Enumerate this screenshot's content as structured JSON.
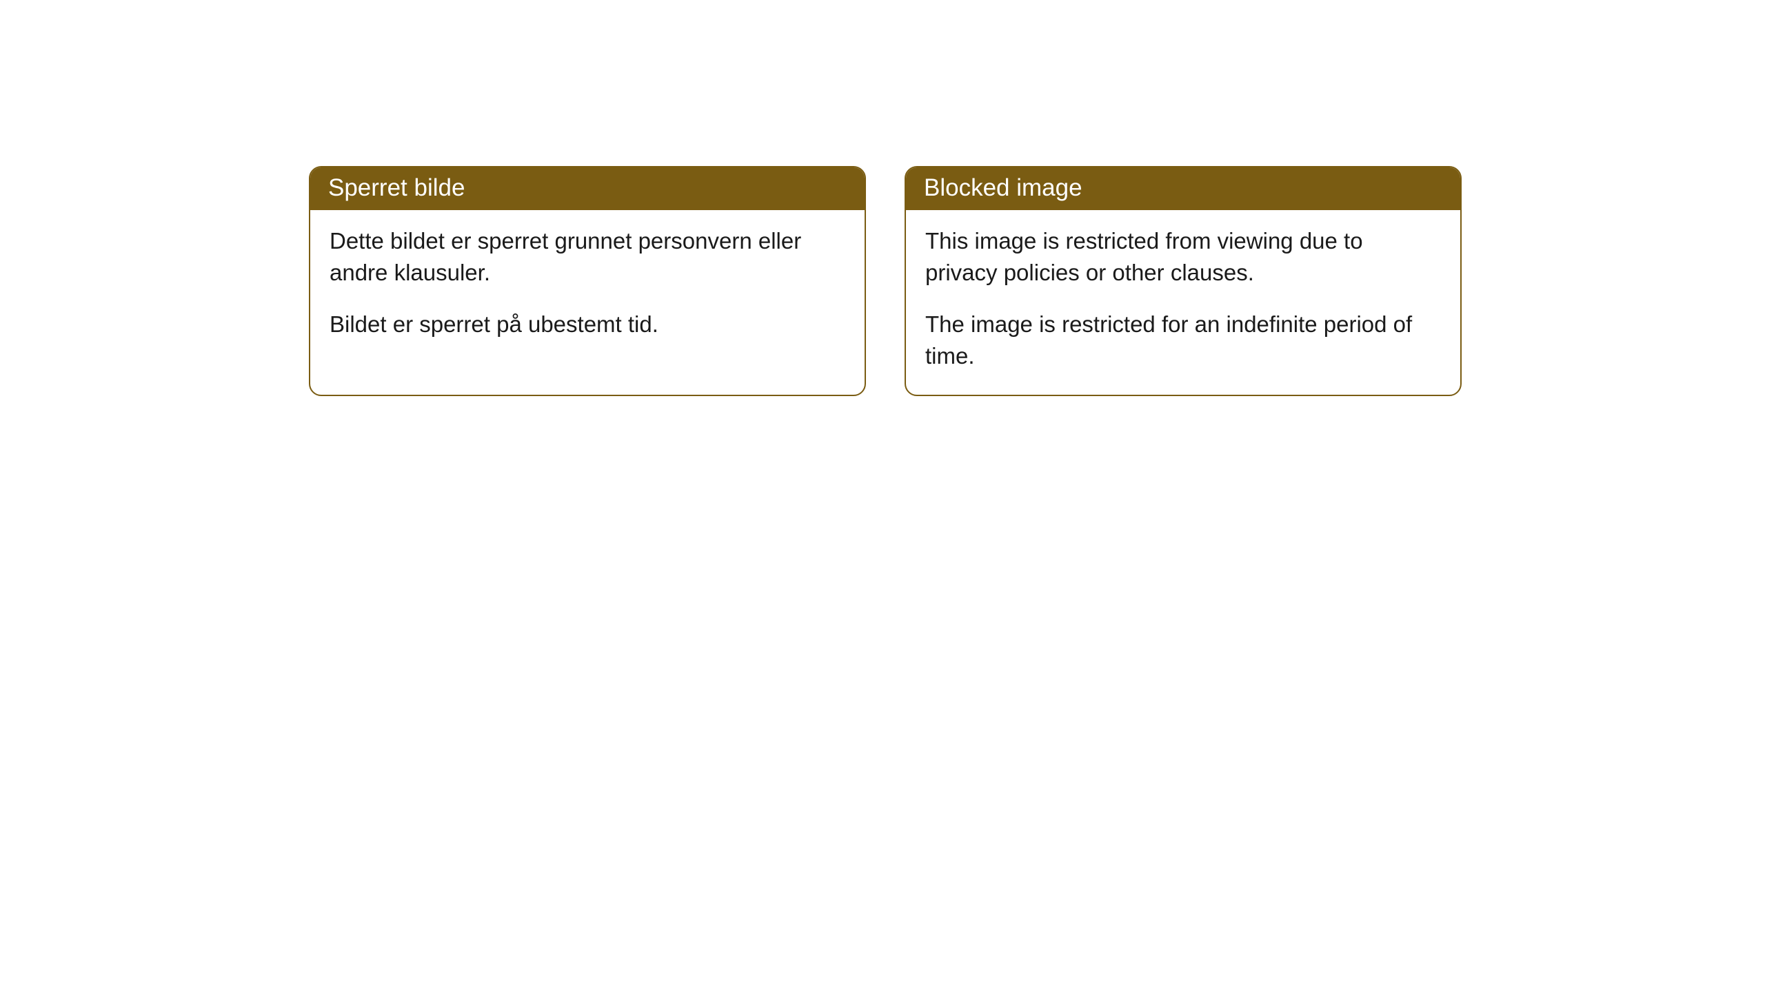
{
  "cards": [
    {
      "title": "Sperret bilde",
      "paragraph1": "Dette bildet er sperret grunnet personvern eller andre klausuler.",
      "paragraph2": "Bildet er sperret på ubestemt tid."
    },
    {
      "title": "Blocked image",
      "paragraph1": "This image is restricted from viewing due to privacy policies or other clauses.",
      "paragraph2": "The image is restricted for an indefinite period of time."
    }
  ],
  "colors": {
    "accent": "#7a5c12",
    "background": "#ffffff",
    "text": "#1a1a1a",
    "headerText": "#ffffff"
  }
}
